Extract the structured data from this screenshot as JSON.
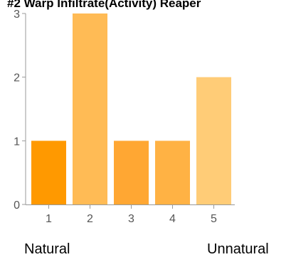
{
  "chart_data": {
    "type": "bar",
    "title": "#2 Warp Infiltrate(Activity) Reaper",
    "categories": [
      "1",
      "2",
      "3",
      "4",
      "5"
    ],
    "values": [
      1,
      3,
      1,
      1,
      2
    ],
    "ylim": [
      0,
      3
    ],
    "yticks": [
      0,
      1,
      2,
      3
    ],
    "xlabel": "",
    "ylabel": "",
    "grid": false,
    "bar_colors": [
      "#FF9900",
      "#FFBB55",
      "#FFA733",
      "#FFB244",
      "#FFCC77"
    ],
    "end_labels": {
      "low": "Natural",
      "high": "Unnatural"
    }
  }
}
